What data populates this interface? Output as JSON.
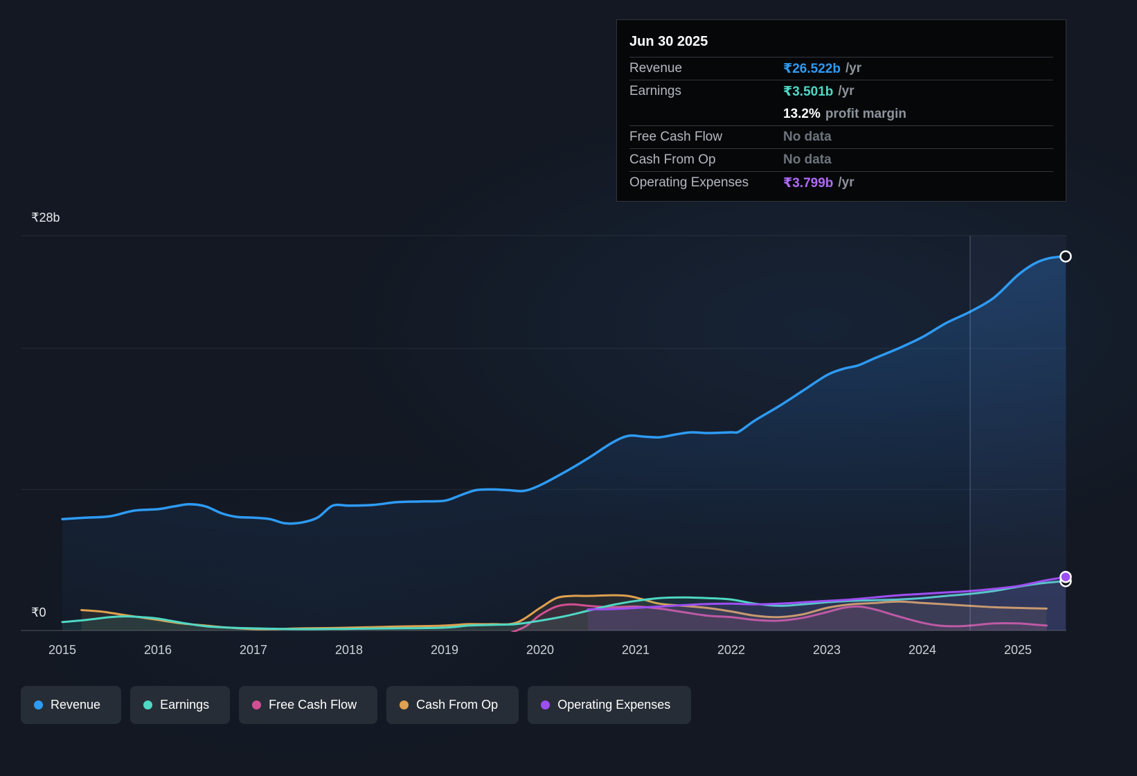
{
  "tooltip": {
    "title": "Jun 30 2025",
    "rows": [
      {
        "label": "Revenue",
        "value": "₹26.522b",
        "suffix": "/yr",
        "value_color": "#2e9bf5",
        "divider": true
      },
      {
        "label": "Earnings",
        "value": "₹3.501b",
        "suffix": "/yr",
        "value_color": "#4fd8c4",
        "divider": true
      },
      {
        "label": "",
        "value": "13.2%",
        "suffix": "profit margin",
        "value_color": "#ffffff",
        "divider": false
      },
      {
        "label": "Free Cash Flow",
        "value": "No data",
        "suffix": "",
        "value_color": "#6e747d",
        "divider": true
      },
      {
        "label": "Cash From Op",
        "value": "No data",
        "suffix": "",
        "value_color": "#6e747d",
        "divider": true
      },
      {
        "label": "Operating Expenses",
        "value": "₹3.799b",
        "suffix": "/yr",
        "value_color": "#b06af8",
        "divider": true
      }
    ]
  },
  "legend": {
    "items": [
      {
        "label": "Revenue",
        "slug": "revenue",
        "color": "#2e9bf5"
      },
      {
        "label": "Earnings",
        "slug": "earnings",
        "color": "#4fd8c4"
      },
      {
        "label": "Free Cash Flow",
        "slug": "free-cash-flow",
        "color": "#d14f93"
      },
      {
        "label": "Cash From Op",
        "slug": "cash-from-op",
        "color": "#dfa14f"
      },
      {
        "label": "Operating Expenses",
        "slug": "operating-expenses",
        "color": "#9d4ff2"
      }
    ]
  },
  "chart_data": {
    "type": "line",
    "unit": "billions INR per year",
    "x_axis": {
      "ticks": [
        2015,
        2016,
        2017,
        2018,
        2019,
        2020,
        2021,
        2022,
        2023,
        2024,
        2025
      ]
    },
    "y_axis": {
      "min": 0,
      "max": 28,
      "top_label": "₹28b",
      "zero_label": "₹0",
      "gridline_values": [
        28,
        20,
        10
      ]
    },
    "current_marker_x": 2024.5,
    "series": [
      {
        "name": "Revenue",
        "slug": "revenue",
        "color": "#2e9bf5",
        "line_width": 3.5,
        "area": "gradient",
        "end_dot": {
          "stroke": "#ffffff",
          "fill": "#10161f"
        },
        "points": [
          [
            2015.0,
            7.9
          ],
          [
            2015.25,
            8.0
          ],
          [
            2015.5,
            8.1
          ],
          [
            2015.75,
            8.5
          ],
          [
            2016.0,
            8.6
          ],
          [
            2016.17,
            8.8
          ],
          [
            2016.33,
            8.95
          ],
          [
            2016.5,
            8.8
          ],
          [
            2016.67,
            8.3
          ],
          [
            2016.83,
            8.05
          ],
          [
            2017.0,
            8.0
          ],
          [
            2017.17,
            7.9
          ],
          [
            2017.33,
            7.6
          ],
          [
            2017.5,
            7.65
          ],
          [
            2017.67,
            8.0
          ],
          [
            2017.83,
            8.85
          ],
          [
            2018.0,
            8.85
          ],
          [
            2018.25,
            8.9
          ],
          [
            2018.5,
            9.1
          ],
          [
            2018.75,
            9.15
          ],
          [
            2019.0,
            9.2
          ],
          [
            2019.17,
            9.6
          ],
          [
            2019.33,
            9.95
          ],
          [
            2019.5,
            10.0
          ],
          [
            2019.67,
            9.95
          ],
          [
            2019.83,
            9.9
          ],
          [
            2020.0,
            10.3
          ],
          [
            2020.25,
            11.2
          ],
          [
            2020.5,
            12.2
          ],
          [
            2020.75,
            13.3
          ],
          [
            2020.92,
            13.8
          ],
          [
            2021.08,
            13.75
          ],
          [
            2021.25,
            13.7
          ],
          [
            2021.42,
            13.9
          ],
          [
            2021.58,
            14.05
          ],
          [
            2021.75,
            14.0
          ],
          [
            2022.0,
            14.05
          ],
          [
            2022.08,
            14.1
          ],
          [
            2022.25,
            14.9
          ],
          [
            2022.5,
            15.9
          ],
          [
            2022.75,
            17.0
          ],
          [
            2023.0,
            18.1
          ],
          [
            2023.17,
            18.55
          ],
          [
            2023.33,
            18.8
          ],
          [
            2023.5,
            19.3
          ],
          [
            2023.75,
            20.0
          ],
          [
            2024.0,
            20.8
          ],
          [
            2024.25,
            21.8
          ],
          [
            2024.5,
            22.6
          ],
          [
            2024.75,
            23.6
          ],
          [
            2025.0,
            25.2
          ],
          [
            2025.17,
            26.0
          ],
          [
            2025.33,
            26.4
          ],
          [
            2025.5,
            26.522
          ]
        ]
      },
      {
        "name": "Cash From Op",
        "slug": "cash-from-op",
        "color": "#dfa14f",
        "line_width": 3,
        "fill_opacity": 0.1,
        "points": [
          [
            2015.2,
            1.45
          ],
          [
            2015.4,
            1.35
          ],
          [
            2015.6,
            1.15
          ],
          [
            2015.8,
            0.95
          ],
          [
            2016.0,
            0.75
          ],
          [
            2016.25,
            0.5
          ],
          [
            2016.5,
            0.35
          ],
          [
            2016.75,
            0.2
          ],
          [
            2017.0,
            0.1
          ],
          [
            2017.25,
            0.1
          ],
          [
            2017.5,
            0.15
          ],
          [
            2018.0,
            0.2
          ],
          [
            2018.5,
            0.28
          ],
          [
            2019.0,
            0.35
          ],
          [
            2019.25,
            0.45
          ],
          [
            2019.5,
            0.45
          ],
          [
            2019.75,
            0.55
          ],
          [
            2020.0,
            1.6
          ],
          [
            2020.17,
            2.3
          ],
          [
            2020.33,
            2.45
          ],
          [
            2020.5,
            2.45
          ],
          [
            2020.75,
            2.5
          ],
          [
            2020.92,
            2.45
          ],
          [
            2021.08,
            2.2
          ],
          [
            2021.25,
            1.9
          ],
          [
            2021.5,
            1.75
          ],
          [
            2021.75,
            1.6
          ],
          [
            2022.0,
            1.35
          ],
          [
            2022.25,
            1.05
          ],
          [
            2022.5,
            0.95
          ],
          [
            2022.75,
            1.15
          ],
          [
            2023.0,
            1.6
          ],
          [
            2023.25,
            1.85
          ],
          [
            2023.5,
            1.95
          ],
          [
            2023.75,
            2.05
          ],
          [
            2024.0,
            1.95
          ],
          [
            2024.25,
            1.85
          ],
          [
            2024.5,
            1.75
          ],
          [
            2024.75,
            1.65
          ],
          [
            2025.0,
            1.6
          ],
          [
            2025.3,
            1.55
          ]
        ]
      },
      {
        "name": "Free Cash Flow",
        "slug": "free-cash-flow",
        "color": "#d14f93",
        "line_width": 3,
        "fill_opacity": 0.1,
        "points": [
          [
            2019.7,
            -0.15
          ],
          [
            2019.85,
            0.3
          ],
          [
            2020.0,
            1.1
          ],
          [
            2020.17,
            1.7
          ],
          [
            2020.33,
            1.85
          ],
          [
            2020.5,
            1.75
          ],
          [
            2020.75,
            1.65
          ],
          [
            2021.0,
            1.7
          ],
          [
            2021.25,
            1.55
          ],
          [
            2021.5,
            1.3
          ],
          [
            2021.75,
            1.05
          ],
          [
            2022.0,
            0.95
          ],
          [
            2022.25,
            0.75
          ],
          [
            2022.5,
            0.7
          ],
          [
            2022.75,
            0.9
          ],
          [
            2023.0,
            1.3
          ],
          [
            2023.17,
            1.6
          ],
          [
            2023.33,
            1.7
          ],
          [
            2023.5,
            1.5
          ],
          [
            2023.75,
            1.0
          ],
          [
            2024.0,
            0.55
          ],
          [
            2024.17,
            0.35
          ],
          [
            2024.33,
            0.3
          ],
          [
            2024.5,
            0.35
          ],
          [
            2024.75,
            0.5
          ],
          [
            2025.0,
            0.5
          ],
          [
            2025.17,
            0.42
          ],
          [
            2025.3,
            0.35
          ]
        ]
      },
      {
        "name": "Earnings",
        "slug": "earnings",
        "color": "#4fd8c4",
        "line_width": 3,
        "fill_opacity": 0.1,
        "end_dot": {
          "stroke": "#ffffff",
          "fill": "#10161f"
        },
        "points": [
          [
            2015.0,
            0.6
          ],
          [
            2015.25,
            0.75
          ],
          [
            2015.5,
            0.95
          ],
          [
            2015.67,
            1.0
          ],
          [
            2015.83,
            0.95
          ],
          [
            2016.0,
            0.85
          ],
          [
            2016.25,
            0.55
          ],
          [
            2016.5,
            0.3
          ],
          [
            2016.75,
            0.2
          ],
          [
            2017.0,
            0.15
          ],
          [
            2017.5,
            0.1
          ],
          [
            2018.0,
            0.12
          ],
          [
            2018.5,
            0.15
          ],
          [
            2019.0,
            0.2
          ],
          [
            2019.25,
            0.35
          ],
          [
            2019.5,
            0.4
          ],
          [
            2019.75,
            0.45
          ],
          [
            2020.0,
            0.7
          ],
          [
            2020.25,
            1.0
          ],
          [
            2020.5,
            1.4
          ],
          [
            2020.75,
            1.8
          ],
          [
            2021.0,
            2.1
          ],
          [
            2021.25,
            2.3
          ],
          [
            2021.5,
            2.35
          ],
          [
            2021.75,
            2.3
          ],
          [
            2022.0,
            2.2
          ],
          [
            2022.25,
            1.9
          ],
          [
            2022.5,
            1.75
          ],
          [
            2022.75,
            1.85
          ],
          [
            2023.0,
            2.0
          ],
          [
            2023.25,
            2.1
          ],
          [
            2023.5,
            2.15
          ],
          [
            2023.75,
            2.2
          ],
          [
            2024.0,
            2.3
          ],
          [
            2024.25,
            2.45
          ],
          [
            2024.5,
            2.6
          ],
          [
            2024.75,
            2.8
          ],
          [
            2025.0,
            3.1
          ],
          [
            2025.25,
            3.35
          ],
          [
            2025.5,
            3.501
          ]
        ]
      },
      {
        "name": "Operating Expenses",
        "slug": "operating-expenses",
        "color": "#9d4ff2",
        "line_width": 3,
        "fill_opacity": 0.15,
        "end_dot": {
          "stroke": "#ffffff",
          "fill": "#9d4ff2"
        },
        "points": [
          [
            2020.5,
            1.5
          ],
          [
            2020.75,
            1.52
          ],
          [
            2021.0,
            1.6
          ],
          [
            2021.25,
            1.7
          ],
          [
            2021.5,
            1.8
          ],
          [
            2021.75,
            1.88
          ],
          [
            2022.0,
            1.9
          ],
          [
            2022.25,
            1.85
          ],
          [
            2022.5,
            1.9
          ],
          [
            2022.75,
            2.0
          ],
          [
            2023.0,
            2.1
          ],
          [
            2023.25,
            2.2
          ],
          [
            2023.5,
            2.35
          ],
          [
            2023.75,
            2.5
          ],
          [
            2024.0,
            2.6
          ],
          [
            2024.25,
            2.7
          ],
          [
            2024.5,
            2.8
          ],
          [
            2024.75,
            2.95
          ],
          [
            2025.0,
            3.15
          ],
          [
            2025.25,
            3.5
          ],
          [
            2025.5,
            3.799
          ]
        ]
      }
    ]
  }
}
